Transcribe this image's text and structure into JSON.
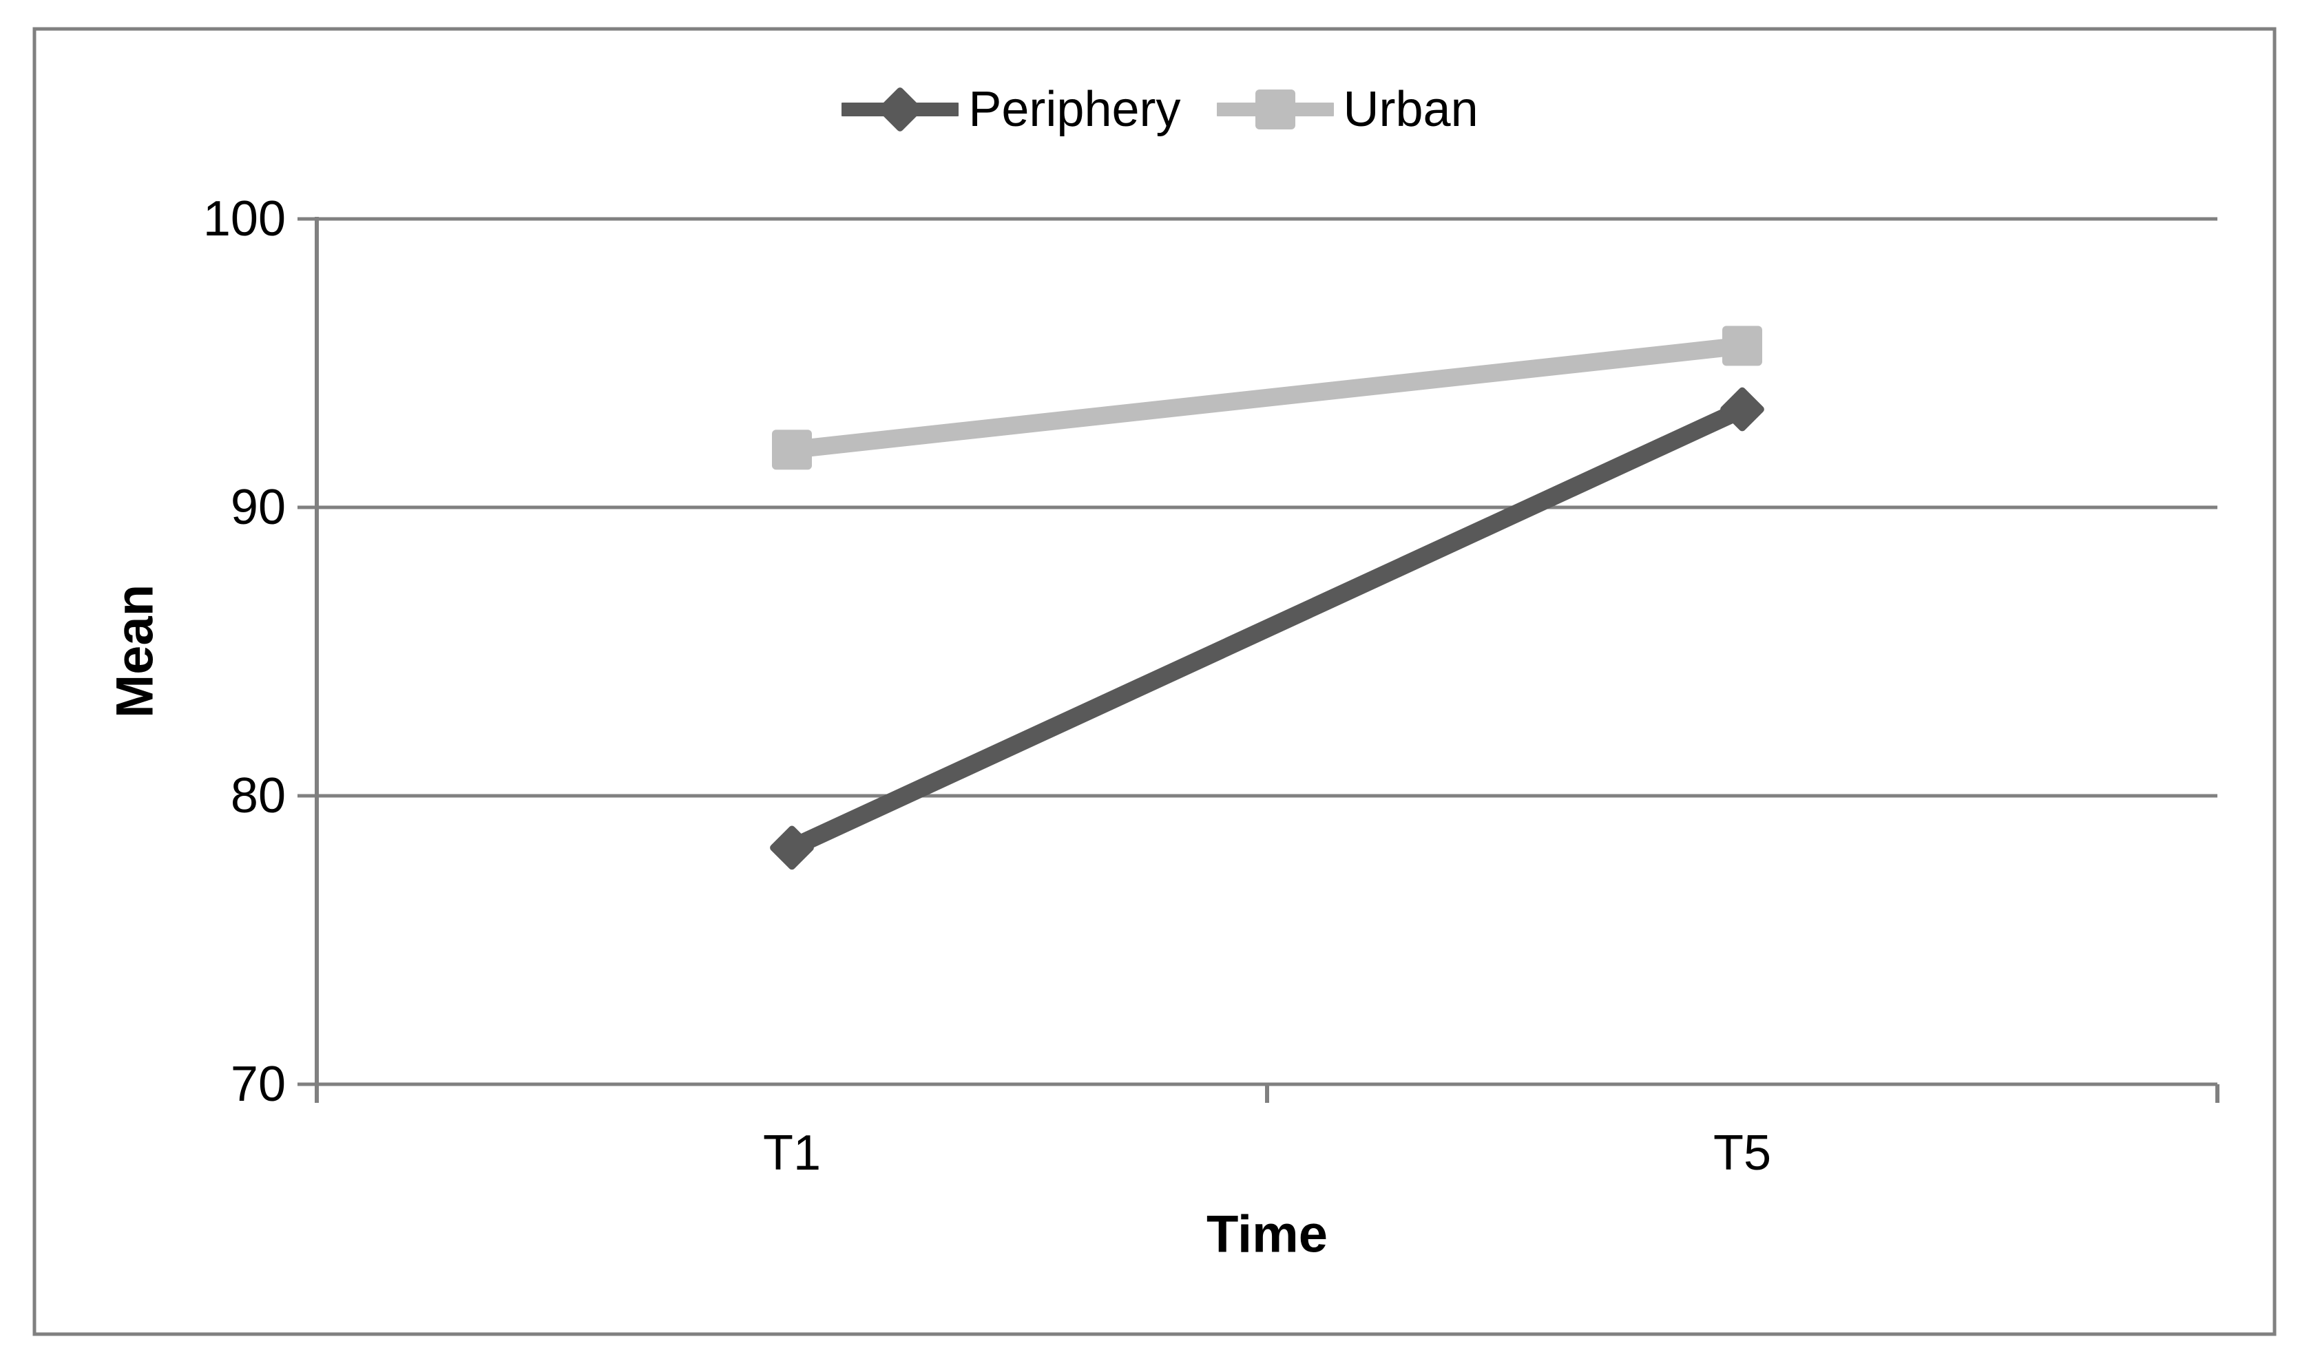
{
  "figure": {
    "background": "#ffffff",
    "border_color": "#808080"
  },
  "chart_data": {
    "type": "line",
    "title": "",
    "xlabel": "Time",
    "ylabel": "Mean",
    "categories": [
      "T1",
      "T5"
    ],
    "series": [
      {
        "name": "Periphery",
        "values": [
          78.2,
          93.4
        ],
        "color": "#595959",
        "marker": "diamond"
      },
      {
        "name": "Urban",
        "values": [
          92.0,
          95.6
        ],
        "color": "#BDBDBD",
        "marker": "square"
      }
    ],
    "ylim": [
      70,
      100
    ],
    "yticks": [
      70,
      80,
      90,
      100
    ],
    "grid": "horizontal",
    "legend_position": "top-center",
    "axis_color": "#808080",
    "text_color": "#000000"
  }
}
